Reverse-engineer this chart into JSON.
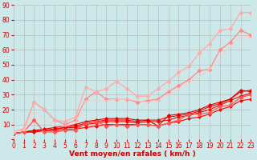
{
  "x": [
    0,
    1,
    2,
    3,
    4,
    5,
    6,
    7,
    8,
    9,
    10,
    11,
    12,
    13,
    14,
    15,
    16,
    17,
    18,
    19,
    20,
    21,
    22,
    23
  ],
  "series": [
    {
      "color": "#ff0000",
      "linewidth": 0.8,
      "marker": "D",
      "markersize": 2.0,
      "y": [
        4,
        5,
        5,
        6,
        6,
        7,
        7,
        8,
        9,
        10,
        10,
        10,
        10,
        10,
        9,
        11,
        12,
        14,
        15,
        17,
        20,
        22,
        26,
        27
      ]
    },
    {
      "color": "#ff0000",
      "linewidth": 0.8,
      "marker": "D",
      "markersize": 2.0,
      "y": [
        4,
        5,
        5,
        6,
        7,
        8,
        8,
        10,
        11,
        12,
        12,
        12,
        11,
        12,
        12,
        13,
        15,
        16,
        18,
        20,
        23,
        26,
        29,
        31
      ]
    },
    {
      "color": "#ff0000",
      "linewidth": 0.8,
      "marker": "D",
      "markersize": 2.0,
      "y": [
        4,
        5,
        6,
        6,
        7,
        8,
        9,
        11,
        12,
        13,
        13,
        13,
        12,
        13,
        13,
        15,
        16,
        17,
        19,
        22,
        24,
        27,
        32,
        33
      ]
    },
    {
      "color": "#dd0000",
      "linewidth": 0.8,
      "marker": "D",
      "markersize": 2.0,
      "y": [
        4,
        5,
        6,
        7,
        8,
        9,
        10,
        12,
        13,
        14,
        14,
        14,
        13,
        13,
        9,
        16,
        17,
        18,
        20,
        23,
        25,
        27,
        33,
        32
      ]
    },
    {
      "color": "#ff5555",
      "linewidth": 0.9,
      "marker": "D",
      "markersize": 2.5,
      "y": [
        4,
        5,
        13,
        5,
        5,
        6,
        6,
        11,
        12,
        9,
        10,
        9,
        10,
        10,
        9,
        11,
        13,
        17,
        17,
        18,
        22,
        23,
        28,
        30
      ]
    },
    {
      "color": "#ff8888",
      "linewidth": 0.9,
      "marker": "D",
      "markersize": 2.5,
      "y": [
        5,
        7,
        25,
        20,
        13,
        10,
        13,
        27,
        32,
        27,
        27,
        27,
        25,
        26,
        27,
        32,
        36,
        40,
        46,
        47,
        60,
        65,
        73,
        70
      ]
    },
    {
      "color": "#ffaaaa",
      "linewidth": 0.9,
      "marker": "D",
      "markersize": 2.5,
      "y": [
        5,
        7,
        25,
        20,
        13,
        12,
        15,
        35,
        32,
        34,
        39,
        34,
        29,
        29,
        34,
        39,
        45,
        49,
        58,
        64,
        73,
        74,
        85,
        85
      ]
    },
    {
      "color": "#ffcccc",
      "linewidth": 0.8,
      "marker": null,
      "markersize": 0,
      "y": [
        5,
        6,
        19,
        13,
        9,
        9,
        11,
        26,
        26,
        26,
        27,
        27,
        26,
        25,
        26,
        30,
        34,
        39,
        42,
        47,
        54,
        62,
        69,
        68
      ]
    }
  ],
  "xlabel": "Vent moyen/en rafales ( km/h )",
  "ylabel": "",
  "xlim": [
    0,
    23
  ],
  "ylim": [
    0,
    90
  ],
  "yticks": [
    0,
    10,
    20,
    30,
    40,
    50,
    60,
    70,
    80,
    90
  ],
  "xticks": [
    0,
    1,
    2,
    3,
    4,
    5,
    6,
    7,
    8,
    9,
    10,
    11,
    12,
    13,
    14,
    15,
    16,
    17,
    18,
    19,
    20,
    21,
    22,
    23
  ],
  "bg_color": "#cce8e8",
  "grid_color": "#aaaaaa",
  "xlabel_color": "#cc0000",
  "tick_color": "#cc0000",
  "xlabel_fontsize": 6.5,
  "tick_fontsize": 5.5,
  "fig_width": 3.2,
  "fig_height": 2.0,
  "dpi": 100
}
